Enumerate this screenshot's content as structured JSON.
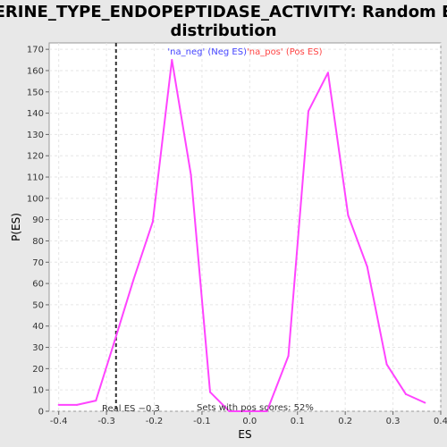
{
  "chart_data": {
    "type": "line",
    "title_line1": "SERINE_TYPE_ENDOPEPTIDASE_ACTIVITY: Random ES",
    "title_line2": "distribution",
    "xlabel": "ES",
    "ylabel": "P(ES)",
    "xlim": [
      -0.42,
      0.4
    ],
    "ylim": [
      0,
      173
    ],
    "x_ticks": [
      -0.4,
      -0.3,
      -0.2,
      -0.1,
      0.0,
      0.1,
      0.2,
      0.3,
      0.4
    ],
    "x_tick_labels": [
      "-0.4",
      "-0.3",
      "-0.2",
      "-0.1",
      "0.0",
      "0.1",
      "0.2",
      "0.3",
      "0.4"
    ],
    "y_ticks": [
      0,
      10,
      20,
      30,
      40,
      50,
      60,
      70,
      80,
      90,
      100,
      110,
      120,
      130,
      140,
      150,
      160,
      170
    ],
    "y_tick_labels": [
      "0",
      "10",
      "20",
      "30",
      "40",
      "50",
      "60",
      "70",
      "80",
      "90",
      "100",
      "110",
      "120",
      "130",
      "140",
      "150",
      "160",
      "170"
    ],
    "grid": true,
    "series": [
      {
        "color": "#ff44ff",
        "x": [
          -0.4,
          -0.362,
          -0.322,
          -0.283,
          -0.243,
          -0.203,
          -0.163,
          -0.123,
          -0.083,
          -0.043,
          -0.004,
          0.036,
          0.081,
          0.123,
          0.164,
          0.206,
          0.246,
          0.287,
          0.327,
          0.367
        ],
        "y": [
          3,
          3,
          5,
          33,
          62,
          89,
          165,
          111,
          9,
          0,
          0,
          0,
          26,
          141,
          159,
          92,
          68,
          22,
          8,
          4
        ]
      }
    ],
    "real_es": -0.28,
    "real_es_color": "#333333",
    "legend": {
      "neg_label": "'na_neg' (Neg ES)",
      "neg_color": "#4444ff",
      "pos_label": "'na_pos' (Pos ES)",
      "pos_color": "#ff4444",
      "placement": "top-center"
    },
    "annotations": {
      "real_es_text": "Real ES −0.3",
      "pos_scores_text": "Sets with pos scores: 52%"
    }
  }
}
